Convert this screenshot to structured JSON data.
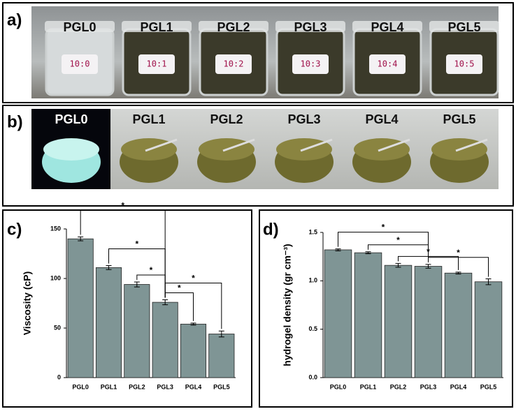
{
  "photos": {
    "a": {
      "label": "a)",
      "samples": [
        "PGL0",
        "PGL1",
        "PGL2",
        "PGL3",
        "PGL4",
        "PGL5"
      ],
      "ratios": [
        "10:0",
        "10:1",
        "10:2",
        "10:3",
        "10:4",
        "10:5"
      ]
    },
    "b": {
      "label": "b)",
      "samples": [
        "PGL0",
        "PGL1",
        "PGL2",
        "PGL3",
        "PGL4",
        "PGL5"
      ]
    }
  },
  "chart_data": [
    {
      "type": "bar",
      "label": "c)",
      "ylabel": "Viscosity (cP)",
      "categories": [
        "PGL0",
        "PGL1",
        "PGL2",
        "PGL3",
        "PGL4",
        "PGL5"
      ],
      "values": [
        140,
        111,
        94,
        76,
        54,
        44
      ],
      "errors": [
        2,
        2,
        2.5,
        2.5,
        1,
        3
      ],
      "color": "#7f9595",
      "ylim": [
        0,
        150
      ],
      "yticks": [
        0,
        50,
        100,
        150
      ],
      "brackets": [
        {
          "pair": [
            0,
            3
          ],
          "label": "*"
        },
        {
          "pair": [
            1,
            3
          ],
          "label": "*"
        },
        {
          "pair": [
            2,
            3
          ],
          "label": "*"
        },
        {
          "pair": [
            3,
            4
          ],
          "label": "*"
        },
        {
          "pair": [
            3,
            5
          ],
          "label": "*"
        }
      ]
    },
    {
      "type": "bar",
      "label": "d)",
      "ylabel": "hydrogel density (gr cm⁻³)",
      "categories": [
        "PGL0",
        "PGL1",
        "PGL2",
        "PGL3",
        "PGL4",
        "PGL5"
      ],
      "values": [
        1.32,
        1.29,
        1.16,
        1.15,
        1.08,
        0.99
      ],
      "errors": [
        0.01,
        0.01,
        0.02,
        0.02,
        0.01,
        0.03
      ],
      "color": "#7f9595",
      "ylim": [
        0,
        1.5
      ],
      "yticks": [
        {
          "value": 0,
          "label": "0.0"
        },
        {
          "value": 0.5,
          "label": "0.5"
        },
        {
          "value": 1,
          "label": "1.0"
        },
        {
          "value": 1.5,
          "label": "1.5"
        }
      ],
      "brackets": [
        {
          "pair": [
            0,
            3
          ],
          "label": "*"
        },
        {
          "pair": [
            1,
            3
          ],
          "label": "*"
        },
        {
          "pair": [
            2,
            4
          ],
          "label": "*"
        },
        {
          "pair": [
            3,
            5
          ],
          "label": "*"
        }
      ]
    }
  ]
}
